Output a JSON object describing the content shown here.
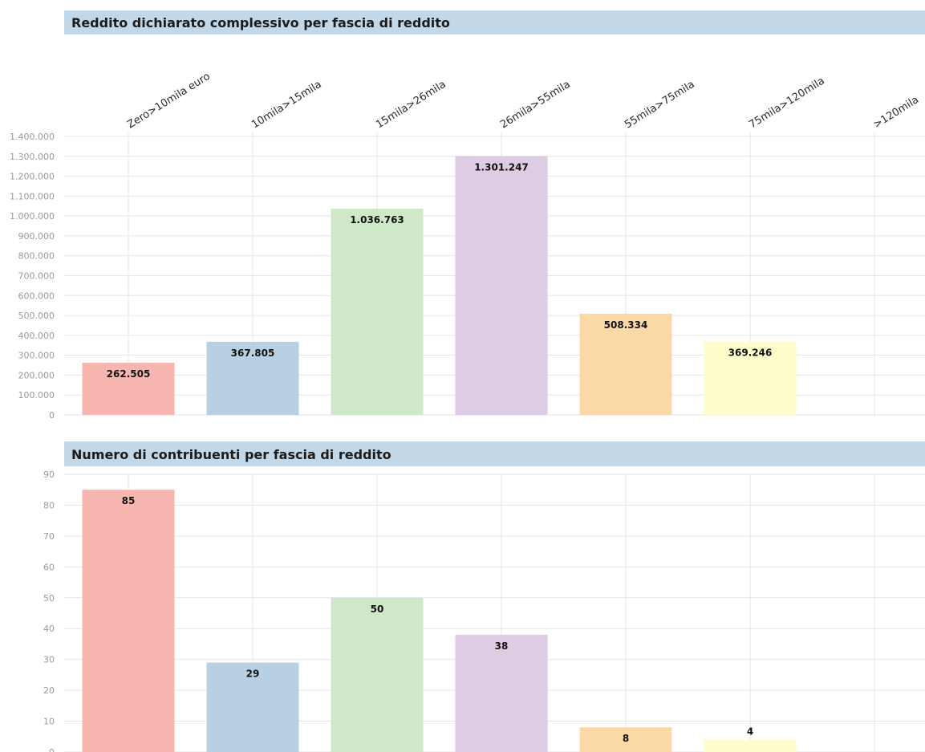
{
  "colors": [
    "#f8b6b0",
    "#b7d0e3",
    "#cfe8c7",
    "#decbe4",
    "#fbd9a6",
    "#fefdcc",
    "#e9e9e9"
  ],
  "chart_data": [
    {
      "type": "bar",
      "title": "Reddito dichiarato complessivo per fascia di reddito",
      "categories": [
        "Zero>10mila euro",
        "10mila>15mila",
        "15mila>26mila",
        "26mila>55mila",
        "55mila>75mila",
        "75mila>120mila",
        ">120mila"
      ],
      "values": [
        262505,
        367805,
        1036763,
        1301247,
        508334,
        369246,
        null
      ],
      "value_labels": [
        "262.505",
        "367.805",
        "1.036.763",
        "1.301.247",
        "508.334",
        "369.246",
        ""
      ],
      "yticks": [
        "0",
        "100.000",
        "200.000",
        "300.000",
        "400.000",
        "500.000",
        "600.000",
        "700.000",
        "800.000",
        "900.000",
        "1.000.000",
        "1.100.000",
        "1.200.000",
        "1.300.000",
        "1.400.000"
      ],
      "ylim": [
        0,
        1400000
      ],
      "grid": true
    },
    {
      "type": "bar",
      "title": "Numero di contribuenti per fascia di reddito",
      "categories": [
        "Zero>10mila euro",
        "10mila>15mila",
        "15mila>26mila",
        "26mila>55mila",
        "55mila>75mila",
        "75mila>120mila",
        ">120mila"
      ],
      "values": [
        85,
        29,
        50,
        38,
        8,
        4,
        null
      ],
      "value_labels": [
        "85",
        "29",
        "50",
        "38",
        "8",
        "4",
        ""
      ],
      "yticks": [
        "0",
        "10",
        "20",
        "30",
        "40",
        "50",
        "60",
        "70",
        "80",
        "90"
      ],
      "ylim": [
        0,
        90
      ],
      "grid": true
    }
  ]
}
